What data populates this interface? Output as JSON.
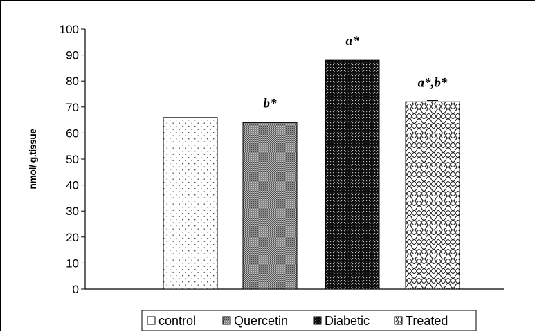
{
  "chart_data": {
    "type": "bar",
    "categories": [
      "control",
      "Quercetin",
      "Diabetic",
      "Treated"
    ],
    "values": [
      66,
      64,
      88,
      72
    ],
    "errors": [
      0,
      0,
      0,
      0.5
    ],
    "annotations": [
      "",
      "b*",
      "a*",
      "a*,b*"
    ],
    "ylabel": "nmol/ g.tissue",
    "ylim": [
      0,
      100
    ],
    "yticks": [
      0,
      10,
      20,
      30,
      40,
      50,
      60,
      70,
      80,
      90,
      100
    ],
    "legend": {
      "position": "bottom",
      "entries": [
        "control",
        "Quercetin",
        "Diabetic",
        "Treated"
      ]
    },
    "grid": false,
    "colors": {
      "control": "#ffffff",
      "quercetin": "#9a9a9a",
      "diabetic": "#1a1a1a",
      "treated": "#ffffff",
      "axis": "#000000"
    }
  }
}
